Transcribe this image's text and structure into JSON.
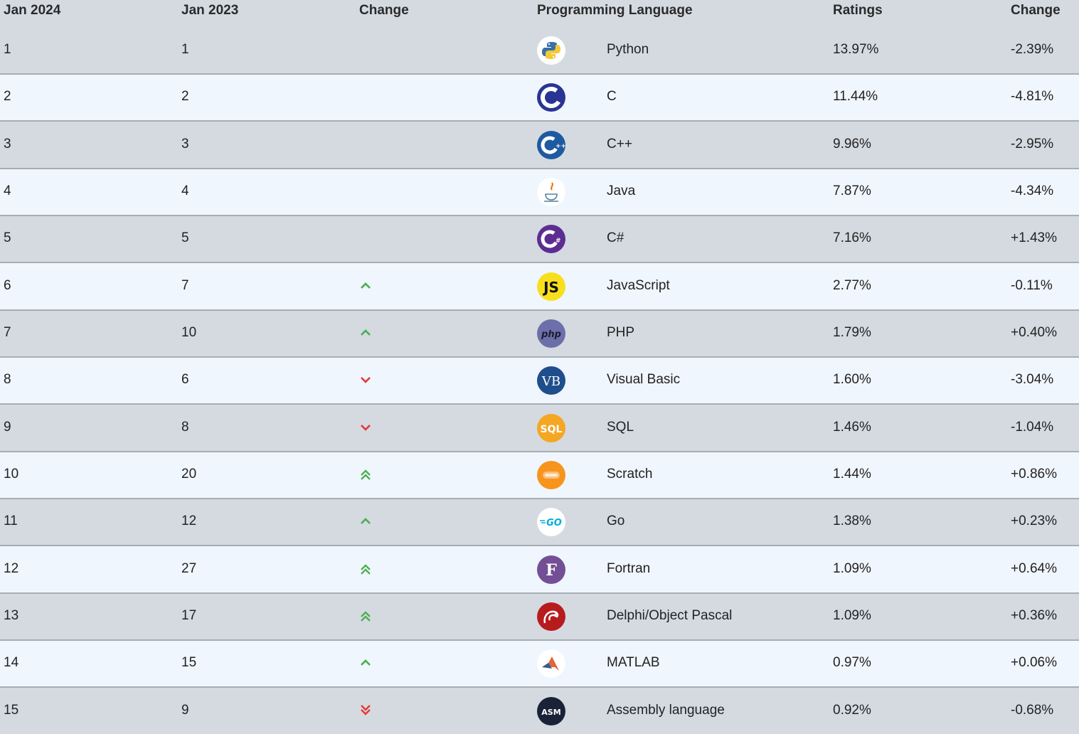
{
  "table": {
    "headers": {
      "current_rank": "Jan 2024",
      "previous_rank": "Jan 2023",
      "change": "Change",
      "language": "Programming Language",
      "ratings": "Ratings",
      "rating_change": "Change"
    },
    "colors": {
      "up": "#4caf50",
      "down": "#e53935",
      "odd_row": "#d5dae1",
      "even_row": "#f0f6fd"
    },
    "rows": [
      {
        "rank": "1",
        "prev": "1",
        "trend": "none",
        "language": "Python",
        "rating": "13.97%",
        "change": "-2.39%",
        "icon": "python-icon"
      },
      {
        "rank": "2",
        "prev": "2",
        "trend": "none",
        "language": "C",
        "rating": "11.44%",
        "change": "-4.81%",
        "icon": "c-icon"
      },
      {
        "rank": "3",
        "prev": "3",
        "trend": "none",
        "language": "C++",
        "rating": "9.96%",
        "change": "-2.95%",
        "icon": "cpp-icon"
      },
      {
        "rank": "4",
        "prev": "4",
        "trend": "none",
        "language": "Java",
        "rating": "7.87%",
        "change": "-4.34%",
        "icon": "java-icon"
      },
      {
        "rank": "5",
        "prev": "5",
        "trend": "none",
        "language": "C#",
        "rating": "7.16%",
        "change": "+1.43%",
        "icon": "csharp-icon"
      },
      {
        "rank": "6",
        "prev": "7",
        "trend": "up",
        "language": "JavaScript",
        "rating": "2.77%",
        "change": "-0.11%",
        "icon": "javascript-icon"
      },
      {
        "rank": "7",
        "prev": "10",
        "trend": "up",
        "language": "PHP",
        "rating": "1.79%",
        "change": "+0.40%",
        "icon": "php-icon"
      },
      {
        "rank": "8",
        "prev": "6",
        "trend": "down",
        "language": "Visual Basic",
        "rating": "1.60%",
        "change": "-3.04%",
        "icon": "visual-basic-icon"
      },
      {
        "rank": "9",
        "prev": "8",
        "trend": "down",
        "language": "SQL",
        "rating": "1.46%",
        "change": "-1.04%",
        "icon": "sql-icon"
      },
      {
        "rank": "10",
        "prev": "20",
        "trend": "up2",
        "language": "Scratch",
        "rating": "1.44%",
        "change": "+0.86%",
        "icon": "scratch-icon"
      },
      {
        "rank": "11",
        "prev": "12",
        "trend": "up",
        "language": "Go",
        "rating": "1.38%",
        "change": "+0.23%",
        "icon": "go-icon"
      },
      {
        "rank": "12",
        "prev": "27",
        "trend": "up2",
        "language": "Fortran",
        "rating": "1.09%",
        "change": "+0.64%",
        "icon": "fortran-icon"
      },
      {
        "rank": "13",
        "prev": "17",
        "trend": "up2",
        "language": "Delphi/Object Pascal",
        "rating": "1.09%",
        "change": "+0.36%",
        "icon": "delphi-icon"
      },
      {
        "rank": "14",
        "prev": "15",
        "trend": "up",
        "language": "MATLAB",
        "rating": "0.97%",
        "change": "+0.06%",
        "icon": "matlab-icon"
      },
      {
        "rank": "15",
        "prev": "9",
        "trend": "down2",
        "language": "Assembly language",
        "rating": "0.92%",
        "change": "-0.68%",
        "icon": "assembly-icon"
      }
    ]
  }
}
